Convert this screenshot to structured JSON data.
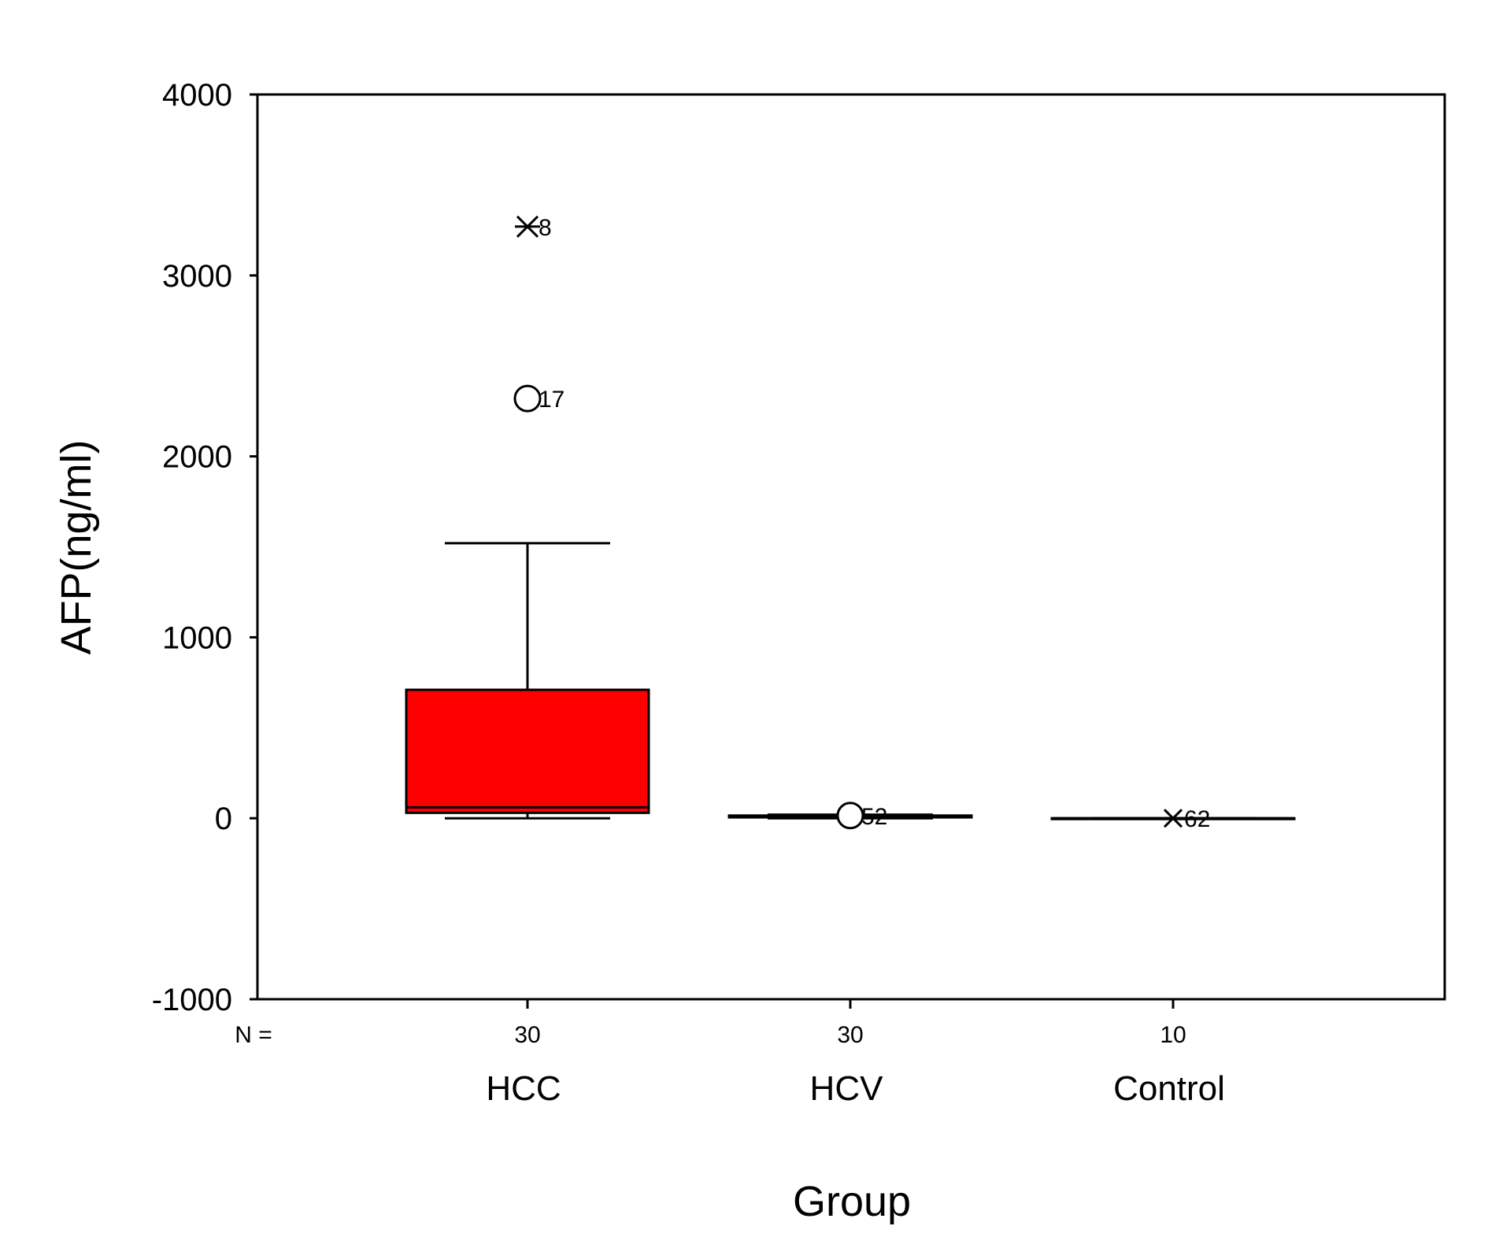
{
  "chart_data": {
    "type": "box",
    "title": "",
    "xlabel": "Group",
    "ylabel": "AFP(ng/ml)",
    "ylim": [
      -1000,
      4000
    ],
    "yticks": [
      -1000,
      0,
      1000,
      2000,
      3000,
      4000
    ],
    "grid": false,
    "n_prefix": "N =",
    "groups": [
      {
        "category": "HCC",
        "n": "30",
        "min": 0,
        "q1": 30,
        "median": 60,
        "q3": 710,
        "max": 1520,
        "fill": "#ff0000",
        "outliers": [
          {
            "value": 2320,
            "marker": "circle",
            "label": "17"
          },
          {
            "value": 3270,
            "marker": "star",
            "label": "8"
          }
        ]
      },
      {
        "category": "HCV",
        "n": "30",
        "min": 0,
        "q1": 5,
        "median": 10,
        "q3": 15,
        "max": 20,
        "fill": "#ff0000",
        "outliers": [
          {
            "value": 15,
            "marker": "circle",
            "label": "52"
          }
        ]
      },
      {
        "category": "Control",
        "n": "10",
        "min": 0,
        "q1": 0,
        "median": 0,
        "q3": 0,
        "max": 0,
        "fill": "#ff0000",
        "outliers": [
          {
            "value": 0,
            "marker": "x",
            "label": "62"
          }
        ]
      }
    ]
  }
}
